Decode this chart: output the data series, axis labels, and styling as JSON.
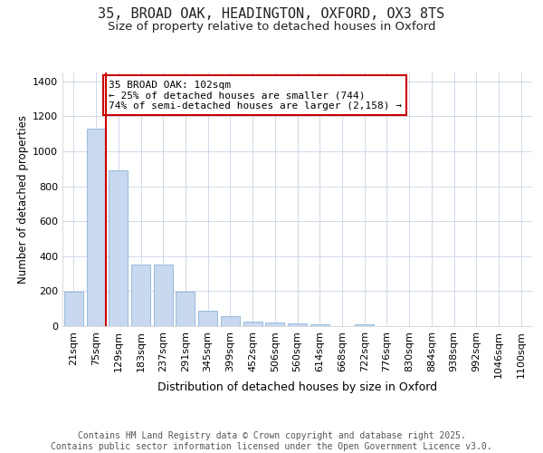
{
  "title_line1": "35, BROAD OAK, HEADINGTON, OXFORD, OX3 8TS",
  "title_line2": "Size of property relative to detached houses in Oxford",
  "xlabel": "Distribution of detached houses by size in Oxford",
  "ylabel": "Number of detached properties",
  "categories": [
    "21sqm",
    "75sqm",
    "129sqm",
    "183sqm",
    "237sqm",
    "291sqm",
    "345sqm",
    "399sqm",
    "452sqm",
    "506sqm",
    "560sqm",
    "614sqm",
    "668sqm",
    "722sqm",
    "776sqm",
    "830sqm",
    "884sqm",
    "938sqm",
    "992sqm",
    "1046sqm",
    "1100sqm"
  ],
  "values": [
    195,
    1130,
    890,
    350,
    350,
    195,
    90,
    55,
    25,
    20,
    15,
    8,
    0,
    12,
    0,
    0,
    0,
    0,
    0,
    0,
    0
  ],
  "bar_color": "#c8d8ef",
  "bar_edge_color": "#8ab4d8",
  "marker_bar_index": 1,
  "marker_color": "#cc0000",
  "annotation_line1": "35 BROAD OAK: 102sqm",
  "annotation_line2": "← 25% of detached houses are smaller (744)",
  "annotation_line3": "74% of semi-detached houses are larger (2,158) →",
  "annotation_box_edgecolor": "#cc0000",
  "ylim": [
    0,
    1450
  ],
  "yticks": [
    0,
    200,
    400,
    600,
    800,
    1000,
    1200,
    1400
  ],
  "bg_color": "#ffffff",
  "plot_bg_color": "#ffffff",
  "grid_color": "#d0d8e8",
  "footer_text": "Contains HM Land Registry data © Crown copyright and database right 2025.\nContains public sector information licensed under the Open Government Licence v3.0.",
  "title_fontsize": 11,
  "subtitle_fontsize": 9.5,
  "xlabel_fontsize": 9,
  "ylabel_fontsize": 8.5,
  "tick_fontsize": 8,
  "footer_fontsize": 7,
  "ann_fontsize": 8
}
